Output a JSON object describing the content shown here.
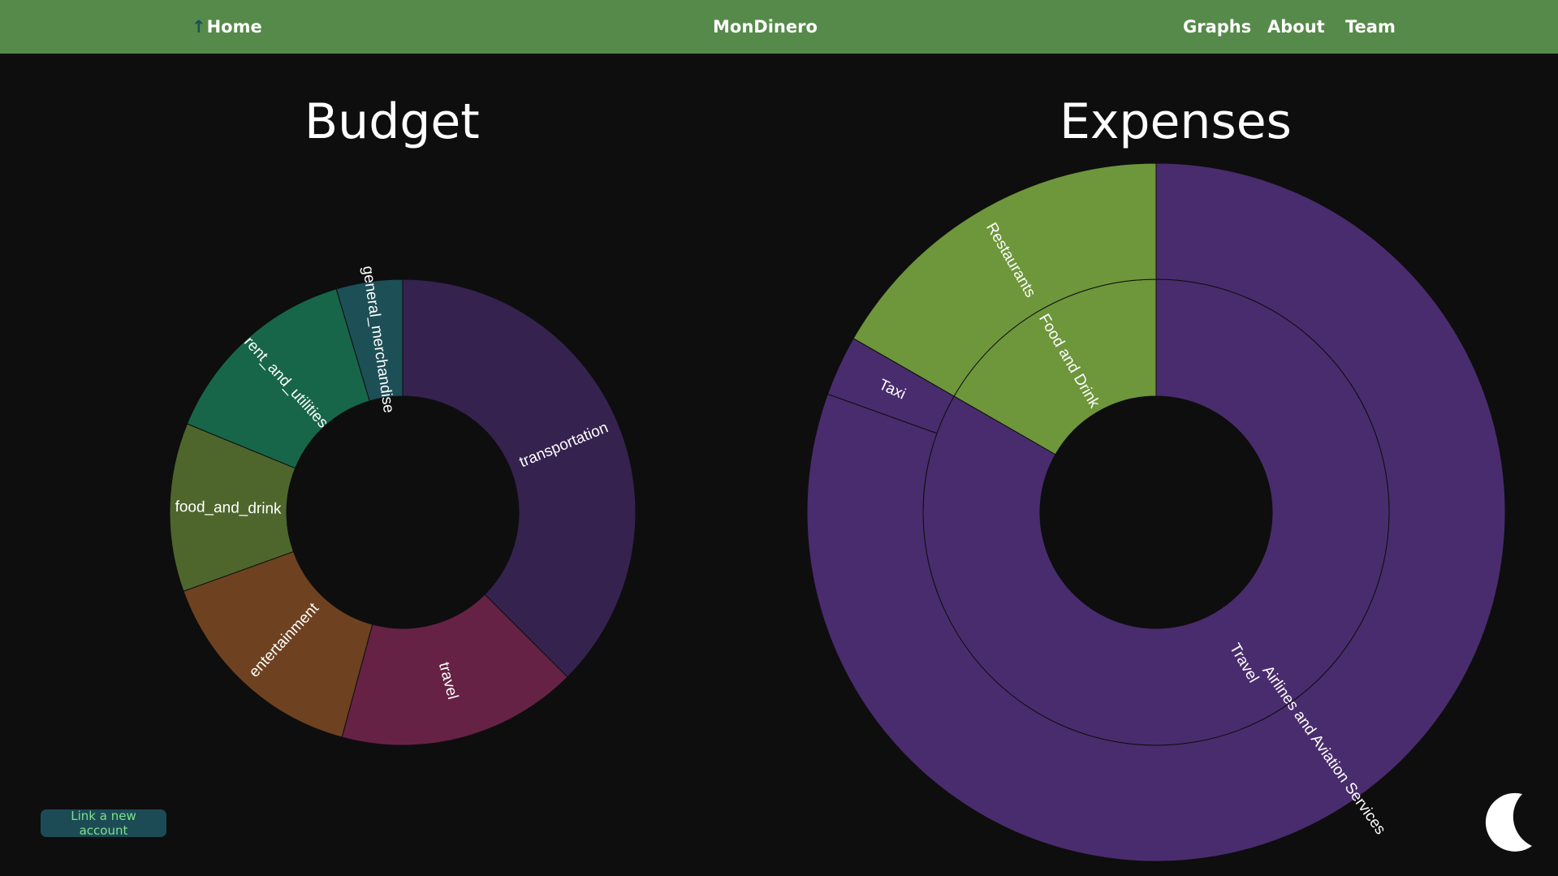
{
  "nav": {
    "home_arrow": "↑",
    "home_label": "Home",
    "brand": "MonDinero",
    "links": [
      "Graphs",
      "About",
      "Team"
    ]
  },
  "link_account_label": "Link a new account",
  "colors": {
    "navbar": "#568a4a",
    "background": "#0e0e0e",
    "link_button_bg": "#1c4b55",
    "link_button_text": "#7ee08a"
  },
  "icons": {
    "home": "up-arrow-icon",
    "theme_toggle": "moon-icon"
  },
  "chart_data": [
    {
      "type": "sunburst",
      "title": "Budget",
      "segments": [
        {
          "label": "transportation",
          "share": 0.375,
          "color": "#35224f"
        },
        {
          "label": "travel",
          "share": 0.167,
          "color": "#662245"
        },
        {
          "label": "entertainment",
          "share": 0.153,
          "color": "#6e4120"
        },
        {
          "label": "food_and_drink",
          "share": 0.117,
          "color": "#4e662c"
        },
        {
          "label": "rent_and_utilities",
          "share": 0.142,
          "color": "#17664a"
        },
        {
          "label": "general_merchandise",
          "share": 0.046,
          "color": "#1d4f56"
        }
      ]
    },
    {
      "type": "sunburst",
      "title": "Expenses",
      "inner": [
        {
          "label": "Travel",
          "share": 0.833,
          "color": "#492c6d"
        },
        {
          "label": "Food and Drink",
          "share": 0.167,
          "color": "#6e963b"
        }
      ],
      "outer": [
        {
          "label": "Airlines and Aviation Services",
          "share": 0.805,
          "color": "#492c6d"
        },
        {
          "label": "Taxi",
          "share": 0.028,
          "color": "#492c6d"
        },
        {
          "label": "Restaurants",
          "share": 0.167,
          "color": "#6e963b"
        }
      ]
    }
  ]
}
